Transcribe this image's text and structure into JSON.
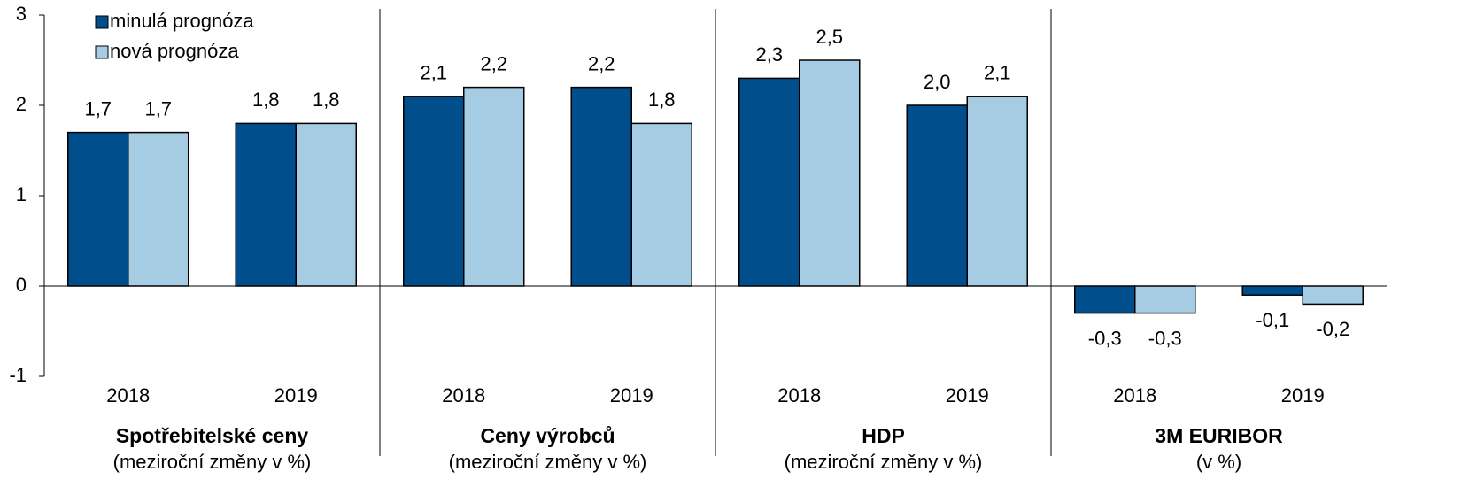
{
  "chart_data": {
    "type": "bar",
    "categories": [
      "2018",
      "2019",
      "2018",
      "2019",
      "2018",
      "2019",
      "2018",
      "2019"
    ],
    "groups": [
      {
        "name": "Spotřebitelské ceny",
        "note": "(meziroční změny v %)"
      },
      {
        "name": "Ceny výrobců",
        "note": "(meziroční změny v %)"
      },
      {
        "name": "HDP",
        "note": "(meziroční změny v %)"
      },
      {
        "name": "3M EURIBOR",
        "note": "(v %)"
      }
    ],
    "series": [
      {
        "name": "minulá prognóza",
        "color": "#004f8c",
        "values": [
          1.7,
          1.8,
          2.1,
          2.2,
          2.3,
          2.0,
          -0.3,
          -0.1
        ],
        "value_labels": [
          "1,7",
          "1,8",
          "2,1",
          "2,2",
          "2,3",
          "2,0",
          "-0,3",
          "-0,1"
        ]
      },
      {
        "name": "nová prognóza",
        "color": "#a6cce4",
        "values": [
          1.7,
          1.8,
          2.2,
          1.8,
          2.5,
          2.1,
          -0.3,
          -0.2
        ],
        "value_labels": [
          "1,7",
          "1,8",
          "2,2",
          "1,8",
          "2,5",
          "2,1",
          "-0,3",
          "-0,2"
        ]
      }
    ],
    "ylim": [
      -1,
      3
    ],
    "yticks": [
      -1,
      0,
      1,
      2,
      3
    ],
    "legend": "top-left"
  }
}
